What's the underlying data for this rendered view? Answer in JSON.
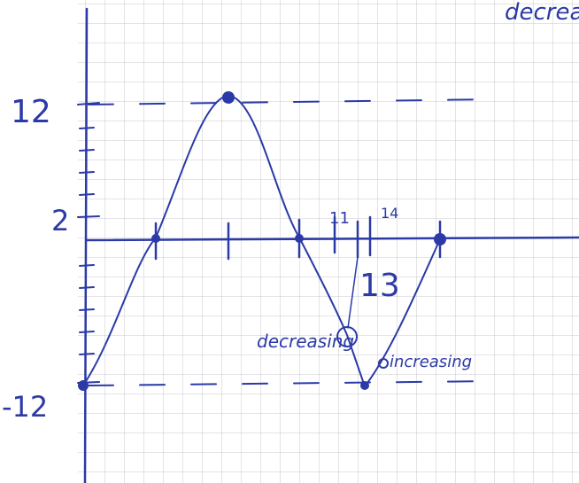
{
  "header": {
    "note": "decrea"
  },
  "axis_labels": {
    "y_top": "12",
    "y_mid": "2",
    "y_bottom": "-12",
    "x_a": "11",
    "x_b": "14",
    "x_c": "13"
  },
  "annotations": {
    "left": "decreasing",
    "right": "increasing"
  }
}
